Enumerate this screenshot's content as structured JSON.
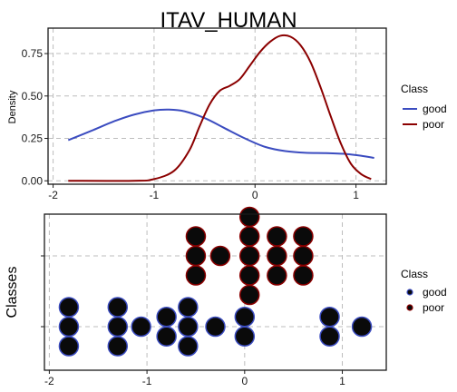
{
  "title": "ITAV_HUMAN",
  "colors": {
    "good": "#3b4cc0",
    "poor": "#8b0000",
    "point_fill": "#0a0a0a",
    "grid": "#bdbdbd"
  },
  "chart_data": [
    {
      "type": "line",
      "title": "ITAV_HUMAN",
      "xlabel": "",
      "ylabel": "Density",
      "xlim": [
        -2.05,
        1.3
      ],
      "ylim": [
        -0.02,
        0.9
      ],
      "x_ticks": [
        -2,
        -1,
        0,
        1
      ],
      "x_tick_labels": [
        "-2",
        "-1",
        "0",
        "1"
      ],
      "y_ticks": [
        0.0,
        0.25,
        0.5,
        0.75
      ],
      "y_tick_labels": [
        "0.00",
        "0.25",
        "0.50",
        "0.75"
      ],
      "grid": true,
      "legend": {
        "title": "Class",
        "placement": "right",
        "entries": [
          "good",
          "poor"
        ]
      },
      "series": [
        {
          "name": "good",
          "color": "#3b4cc0",
          "x": [
            -1.85,
            -1.6,
            -1.4,
            -1.2,
            -1.0,
            -0.85,
            -0.7,
            -0.5,
            -0.3,
            -0.1,
            0.1,
            0.3,
            0.5,
            0.7,
            0.9,
            1.05,
            1.18
          ],
          "y": [
            0.24,
            0.3,
            0.35,
            0.39,
            0.415,
            0.42,
            0.41,
            0.37,
            0.31,
            0.25,
            0.2,
            0.175,
            0.165,
            0.163,
            0.158,
            0.148,
            0.135
          ]
        },
        {
          "name": "poor",
          "color": "#8b0000",
          "x": [
            -1.85,
            -1.2,
            -1.0,
            -0.8,
            -0.65,
            -0.55,
            -0.45,
            -0.35,
            -0.25,
            -0.15,
            -0.05,
            0.05,
            0.15,
            0.25,
            0.35,
            0.45,
            0.55,
            0.65,
            0.75,
            0.85,
            0.95,
            1.05,
            1.15
          ],
          "y": [
            0.0,
            0.0,
            0.01,
            0.06,
            0.18,
            0.32,
            0.45,
            0.53,
            0.56,
            0.6,
            0.68,
            0.76,
            0.82,
            0.855,
            0.85,
            0.8,
            0.7,
            0.55,
            0.38,
            0.22,
            0.1,
            0.04,
            0.01
          ]
        }
      ]
    },
    {
      "type": "scatter",
      "xlabel": "",
      "ylabel": "Classes",
      "xlim": [
        -2.05,
        1.45
      ],
      "x_ticks": [
        -2,
        -1,
        0,
        1
      ],
      "x_tick_labels": [
        "-2",
        "-1",
        "0",
        "1"
      ],
      "y_categories": [
        "good",
        "poor"
      ],
      "grid": true,
      "legend": {
        "title": "Class",
        "placement": "right",
        "entries": [
          "good",
          "poor"
        ]
      },
      "series": [
        {
          "name": "good",
          "color": "#3b4cc0",
          "points": [
            {
              "x": -1.8,
              "stack": 0
            },
            {
              "x": -1.8,
              "stack": 1
            },
            {
              "x": -1.8,
              "stack": 2
            },
            {
              "x": -1.3,
              "stack": 0
            },
            {
              "x": -1.3,
              "stack": 1
            },
            {
              "x": -1.3,
              "stack": 2
            },
            {
              "x": -1.06,
              "stack": 0
            },
            {
              "x": -0.8,
              "stack": 0
            },
            {
              "x": -0.8,
              "stack": 1
            },
            {
              "x": -0.58,
              "stack": 0
            },
            {
              "x": -0.58,
              "stack": 1
            },
            {
              "x": -0.58,
              "stack": 2
            },
            {
              "x": -0.3,
              "stack": 0
            },
            {
              "x": 0.0,
              "stack": 0
            },
            {
              "x": 0.0,
              "stack": 1
            },
            {
              "x": 0.87,
              "stack": 0
            },
            {
              "x": 0.87,
              "stack": 1
            },
            {
              "x": 1.2,
              "stack": 0
            }
          ]
        },
        {
          "name": "poor",
          "color": "#8b0000",
          "points": [
            {
              "x": -0.5,
              "stack": 0
            },
            {
              "x": -0.5,
              "stack": 1
            },
            {
              "x": -0.5,
              "stack": 2
            },
            {
              "x": -0.25,
              "stack": 0
            },
            {
              "x": 0.05,
              "stack": 0
            },
            {
              "x": 0.05,
              "stack": 1
            },
            {
              "x": 0.05,
              "stack": 2
            },
            {
              "x": 0.05,
              "stack": 3
            },
            {
              "x": 0.05,
              "stack": 4
            },
            {
              "x": 0.33,
              "stack": 0
            },
            {
              "x": 0.33,
              "stack": 1
            },
            {
              "x": 0.33,
              "stack": 2
            },
            {
              "x": 0.6,
              "stack": 0
            },
            {
              "x": 0.6,
              "stack": 1
            },
            {
              "x": 0.6,
              "stack": 2
            }
          ]
        }
      ]
    }
  ]
}
